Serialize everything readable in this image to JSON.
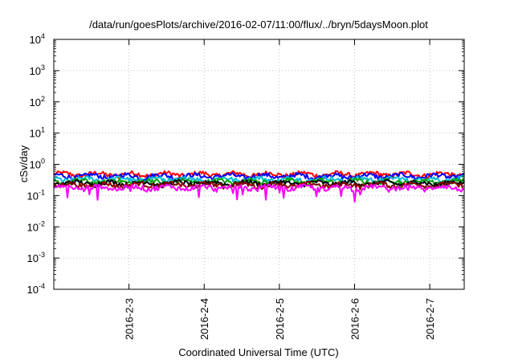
{
  "chart_data": {
    "type": "line",
    "title": "/data/run/goesPlots/archive/2016-02-07/11:00/flux/../bryn/5daysMoon.plot",
    "xlabel": "Coordinated Universal Time (UTC)",
    "ylabel": "cSv/day",
    "yscale": "log",
    "ylim": [
      0.0001,
      10000
    ],
    "yticks": [
      {
        "exp": "-4"
      },
      {
        "exp": "-3"
      },
      {
        "exp": "-2"
      },
      {
        "exp": "-1"
      },
      {
        "exp": "0"
      },
      {
        "exp": "1"
      },
      {
        "exp": "2"
      },
      {
        "exp": "3"
      },
      {
        "exp": "4"
      }
    ],
    "ytick_base": "10",
    "xlim": [
      "2016-02-02 00:00",
      "2016-02-07 11:00"
    ],
    "xticks": [
      "2016-2-3",
      "2016-2-4",
      "2016-2-5",
      "2016-2-6",
      "2016-2-7"
    ],
    "grid": true,
    "series": [
      {
        "color": "#ff0000",
        "level": 0.48
      },
      {
        "color": "#0000ff",
        "level": 0.42
      },
      {
        "color": "#00bcd4",
        "level": 0.33
      },
      {
        "color": "#00a000",
        "level": 0.28
      },
      {
        "color": "#000000",
        "level": 0.25
      },
      {
        "color": "#8b0000",
        "level": 0.22
      },
      {
        "color": "#ff00ff",
        "level": 0.18
      }
    ]
  }
}
